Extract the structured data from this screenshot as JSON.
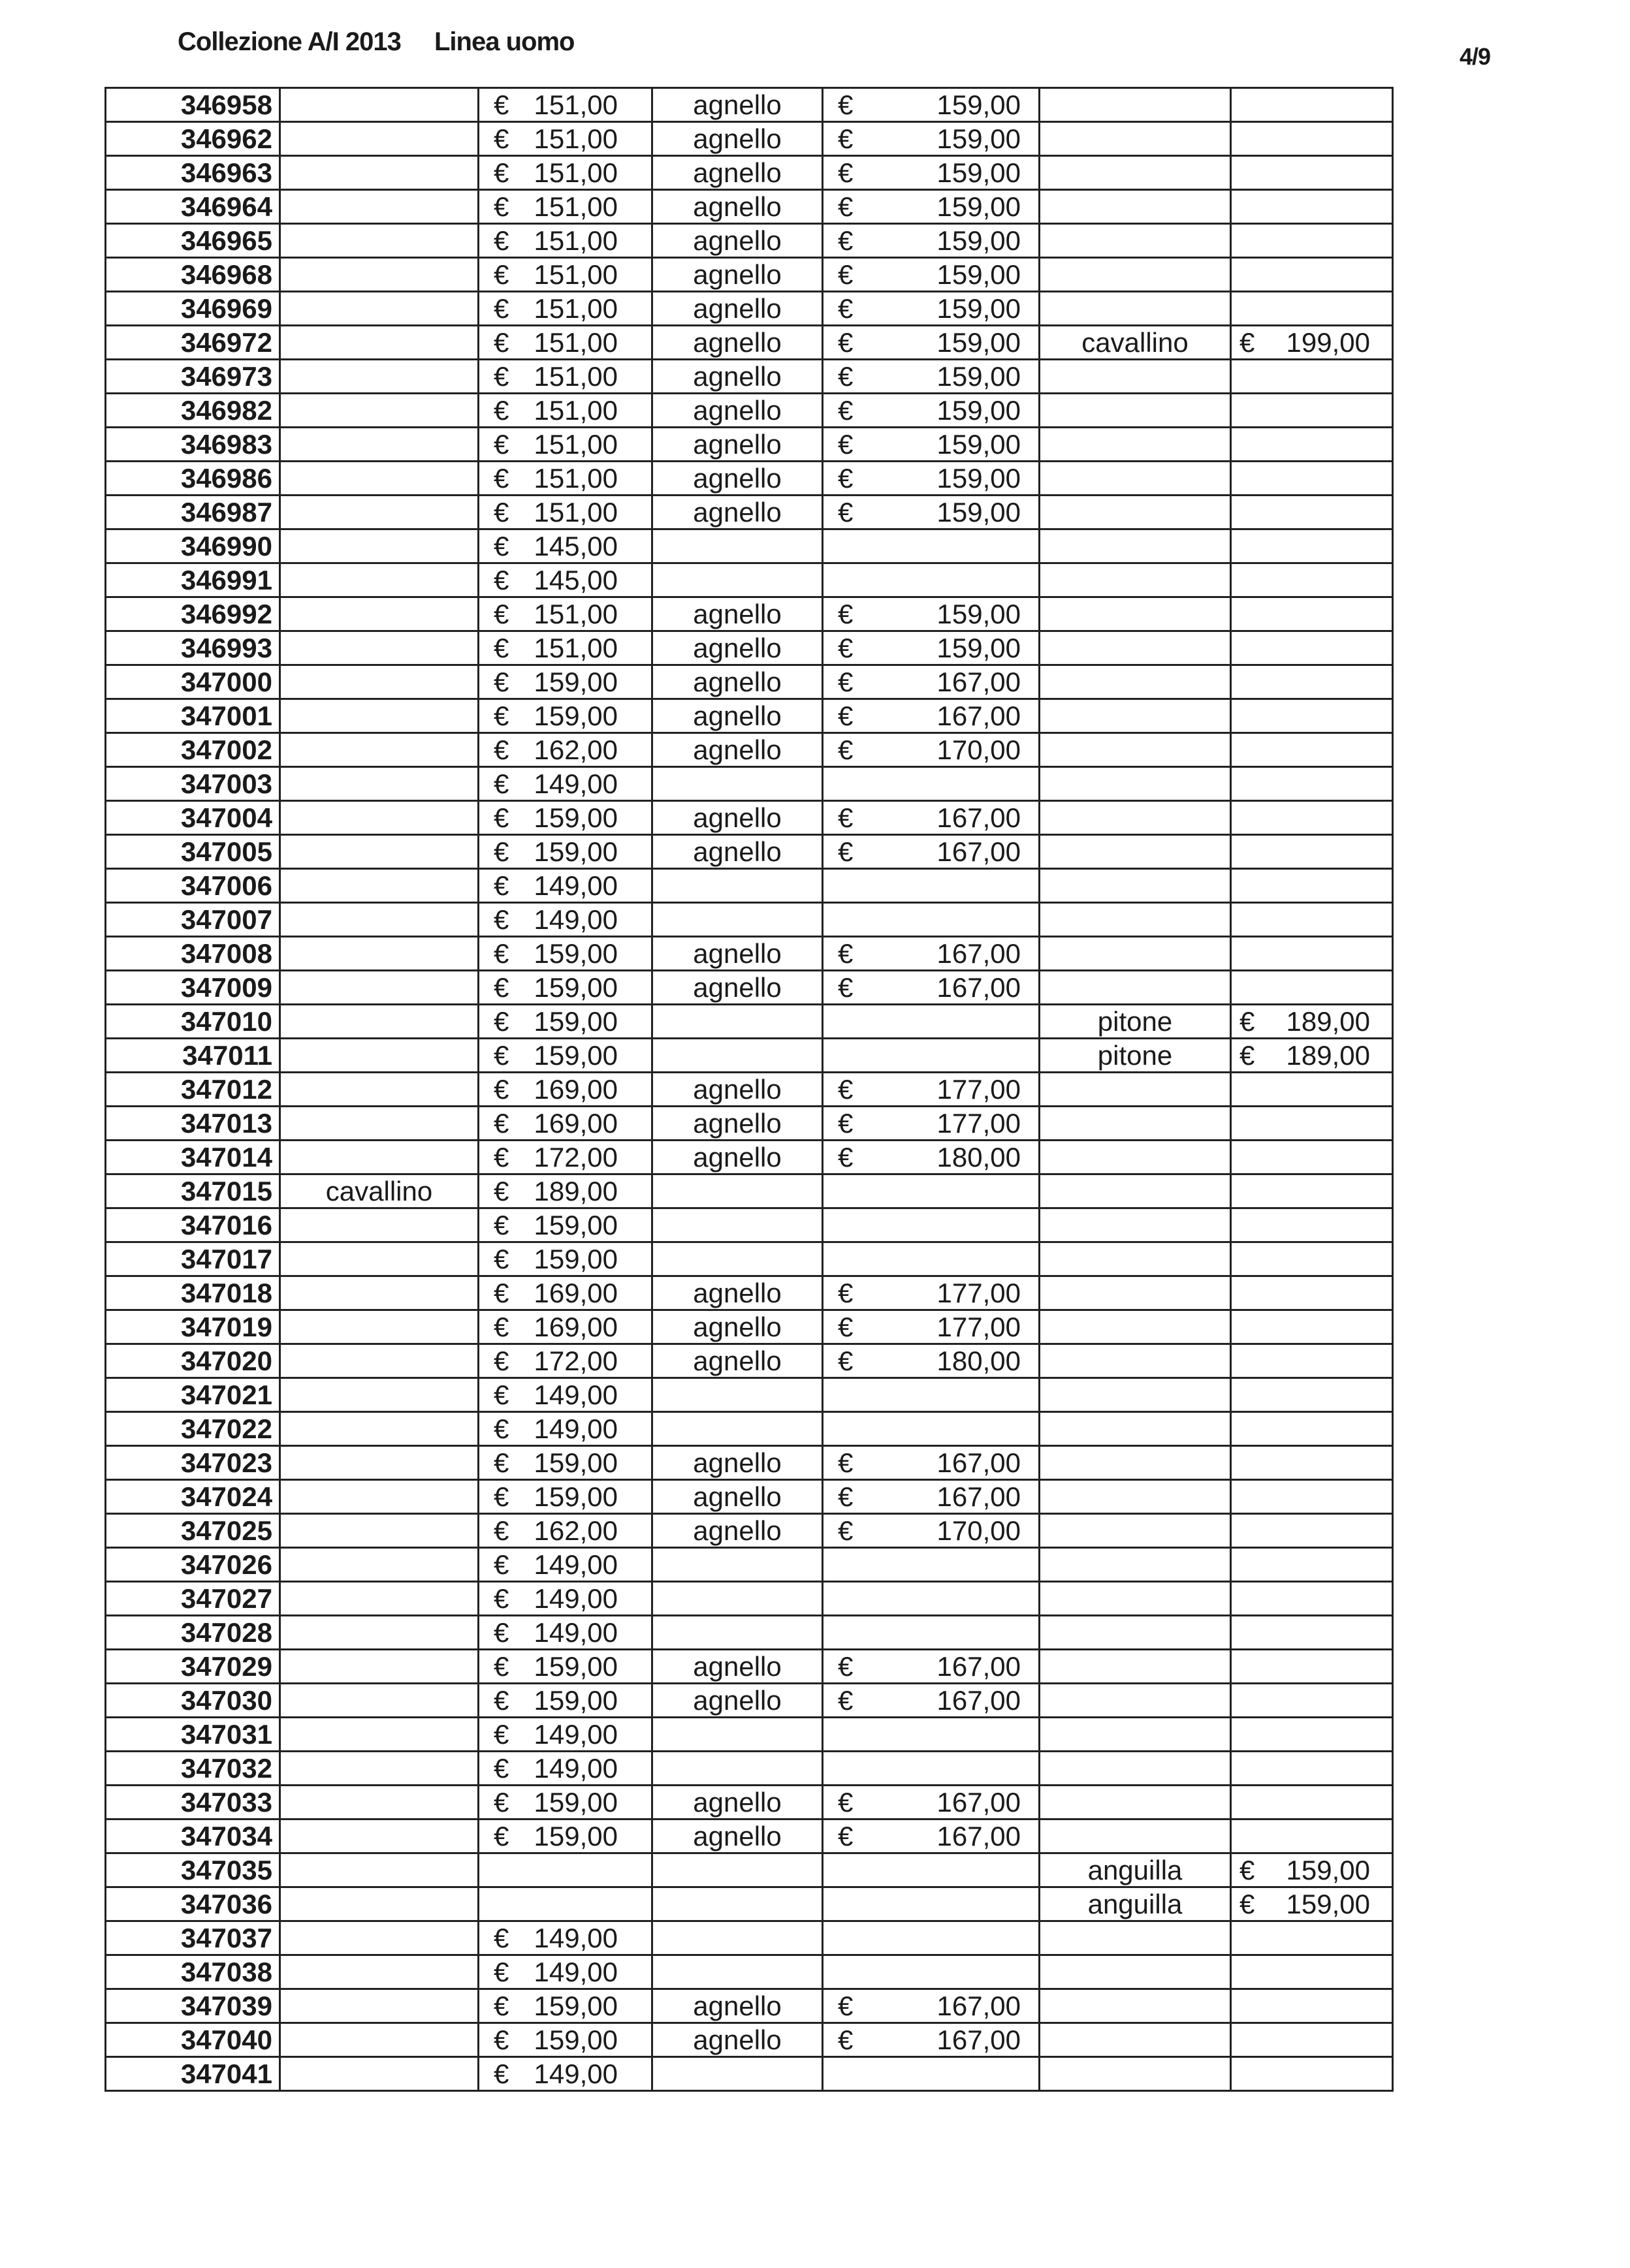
{
  "header": {
    "collection": "Collezione A/I 2013",
    "line": "Linea uomo",
    "page": "4/9"
  },
  "currency": "€",
  "rows": [
    [
      "346958",
      "",
      "151,00",
      "agnello",
      "159,00",
      "",
      ""
    ],
    [
      "346962",
      "",
      "151,00",
      "agnello",
      "159,00",
      "",
      ""
    ],
    [
      "346963",
      "",
      "151,00",
      "agnello",
      "159,00",
      "",
      ""
    ],
    [
      "346964",
      "",
      "151,00",
      "agnello",
      "159,00",
      "",
      ""
    ],
    [
      "346965",
      "",
      "151,00",
      "agnello",
      "159,00",
      "",
      ""
    ],
    [
      "346968",
      "",
      "151,00",
      "agnello",
      "159,00",
      "",
      ""
    ],
    [
      "346969",
      "",
      "151,00",
      "agnello",
      "159,00",
      "",
      ""
    ],
    [
      "346972",
      "",
      "151,00",
      "agnello",
      "159,00",
      "cavallino",
      "199,00"
    ],
    [
      "346973",
      "",
      "151,00",
      "agnello",
      "159,00",
      "",
      ""
    ],
    [
      "346982",
      "",
      "151,00",
      "agnello",
      "159,00",
      "",
      ""
    ],
    [
      "346983",
      "",
      "151,00",
      "agnello",
      "159,00",
      "",
      ""
    ],
    [
      "346986",
      "",
      "151,00",
      "agnello",
      "159,00",
      "",
      ""
    ],
    [
      "346987",
      "",
      "151,00",
      "agnello",
      "159,00",
      "",
      ""
    ],
    [
      "346990",
      "",
      "145,00",
      "",
      "",
      "",
      ""
    ],
    [
      "346991",
      "",
      "145,00",
      "",
      "",
      "",
      ""
    ],
    [
      "346992",
      "",
      "151,00",
      "agnello",
      "159,00",
      "",
      ""
    ],
    [
      "346993",
      "",
      "151,00",
      "agnello",
      "159,00",
      "",
      ""
    ],
    [
      "347000",
      "",
      "159,00",
      "agnello",
      "167,00",
      "",
      ""
    ],
    [
      "347001",
      "",
      "159,00",
      "agnello",
      "167,00",
      "",
      ""
    ],
    [
      "347002",
      "",
      "162,00",
      "agnello",
      "170,00",
      "",
      ""
    ],
    [
      "347003",
      "",
      "149,00",
      "",
      "",
      "",
      ""
    ],
    [
      "347004",
      "",
      "159,00",
      "agnello",
      "167,00",
      "",
      ""
    ],
    [
      "347005",
      "",
      "159,00",
      "agnello",
      "167,00",
      "",
      ""
    ],
    [
      "347006",
      "",
      "149,00",
      "",
      "",
      "",
      ""
    ],
    [
      "347007",
      "",
      "149,00",
      "",
      "",
      "",
      ""
    ],
    [
      "347008",
      "",
      "159,00",
      "agnello",
      "167,00",
      "",
      ""
    ],
    [
      "347009",
      "",
      "159,00",
      "agnello",
      "167,00",
      "",
      ""
    ],
    [
      "347010",
      "",
      "159,00",
      "",
      "",
      "pitone",
      "189,00"
    ],
    [
      "347011",
      "",
      "159,00",
      "",
      "",
      "pitone",
      "189,00"
    ],
    [
      "347012",
      "",
      "169,00",
      "agnello",
      "177,00",
      "",
      ""
    ],
    [
      "347013",
      "",
      "169,00",
      "agnello",
      "177,00",
      "",
      ""
    ],
    [
      "347014",
      "",
      "172,00",
      "agnello",
      "180,00",
      "",
      ""
    ],
    [
      "347015",
      "cavallino",
      "189,00",
      "",
      "",
      "",
      ""
    ],
    [
      "347016",
      "",
      "159,00",
      "",
      "",
      "",
      ""
    ],
    [
      "347017",
      "",
      "159,00",
      "",
      "",
      "",
      ""
    ],
    [
      "347018",
      "",
      "169,00",
      "agnello",
      "177,00",
      "",
      ""
    ],
    [
      "347019",
      "",
      "169,00",
      "agnello",
      "177,00",
      "",
      ""
    ],
    [
      "347020",
      "",
      "172,00",
      "agnello",
      "180,00",
      "",
      ""
    ],
    [
      "347021",
      "",
      "149,00",
      "",
      "",
      "",
      ""
    ],
    [
      "347022",
      "",
      "149,00",
      "",
      "",
      "",
      ""
    ],
    [
      "347023",
      "",
      "159,00",
      "agnello",
      "167,00",
      "",
      ""
    ],
    [
      "347024",
      "",
      "159,00",
      "agnello",
      "167,00",
      "",
      ""
    ],
    [
      "347025",
      "",
      "162,00",
      "agnello",
      "170,00",
      "",
      ""
    ],
    [
      "347026",
      "",
      "149,00",
      "",
      "",
      "",
      ""
    ],
    [
      "347027",
      "",
      "149,00",
      "",
      "",
      "",
      ""
    ],
    [
      "347028",
      "",
      "149,00",
      "",
      "",
      "",
      ""
    ],
    [
      "347029",
      "",
      "159,00",
      "agnello",
      "167,00",
      "",
      ""
    ],
    [
      "347030",
      "",
      "159,00",
      "agnello",
      "167,00",
      "",
      ""
    ],
    [
      "347031",
      "",
      "149,00",
      "",
      "",
      "",
      ""
    ],
    [
      "347032",
      "",
      "149,00",
      "",
      "",
      "",
      ""
    ],
    [
      "347033",
      "",
      "159,00",
      "agnello",
      "167,00",
      "",
      ""
    ],
    [
      "347034",
      "",
      "159,00",
      "agnello",
      "167,00",
      "",
      ""
    ],
    [
      "347035",
      "",
      "",
      "",
      "",
      "anguilla",
      "159,00"
    ],
    [
      "347036",
      "",
      "",
      "",
      "",
      "anguilla",
      "159,00"
    ],
    [
      "347037",
      "",
      "149,00",
      "",
      "",
      "",
      ""
    ],
    [
      "347038",
      "",
      "149,00",
      "",
      "",
      "",
      ""
    ],
    [
      "347039",
      "",
      "159,00",
      "agnello",
      "167,00",
      "",
      ""
    ],
    [
      "347040",
      "",
      "159,00",
      "agnello",
      "167,00",
      "",
      ""
    ],
    [
      "347041",
      "",
      "149,00",
      "",
      "",
      "",
      ""
    ]
  ]
}
